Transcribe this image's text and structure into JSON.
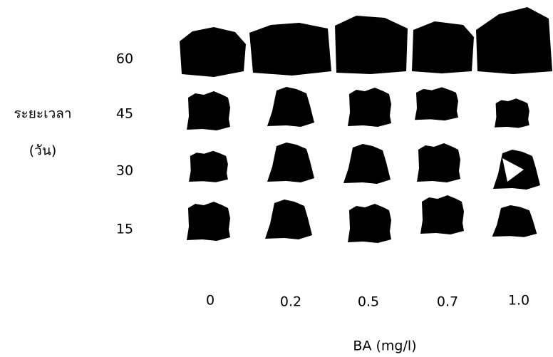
{
  "y_axis": {
    "label_lines": [
      "ระยะเวลา",
      "(วัน)"
    ],
    "rows": [
      "60",
      "45",
      "30",
      "15"
    ]
  },
  "x_axis": {
    "label": "BA (mg/l)",
    "columns": [
      "0",
      "0.2",
      "0.5",
      "0.7",
      "1.0"
    ]
  }
}
